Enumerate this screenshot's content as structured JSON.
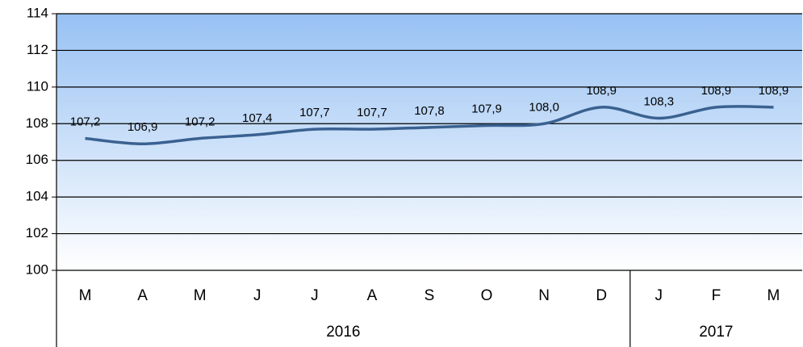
{
  "chart_data": {
    "type": "line",
    "categories": [
      "M",
      "A",
      "M",
      "J",
      "J",
      "A",
      "S",
      "O",
      "N",
      "D",
      "J",
      "F",
      "M"
    ],
    "values": [
      107.2,
      106.9,
      107.2,
      107.4,
      107.7,
      107.7,
      107.8,
      107.9,
      108.0,
      108.9,
      108.3,
      108.9,
      108.9
    ],
    "value_labels": [
      "107,2",
      "106,9",
      "107,2",
      "107,4",
      "107,7",
      "107,7",
      "107,8",
      "107,9",
      "108,0",
      "108,9",
      "108,3",
      "108,9",
      "108,9"
    ],
    "groups": [
      {
        "label": "2016",
        "span": 10
      },
      {
        "label": "2017",
        "span": 3
      }
    ],
    "color": "#3a6190",
    "ylim": [
      100,
      114
    ],
    "yticks": [
      100,
      102,
      104,
      106,
      108,
      110,
      112,
      114
    ],
    "grid": true
  }
}
